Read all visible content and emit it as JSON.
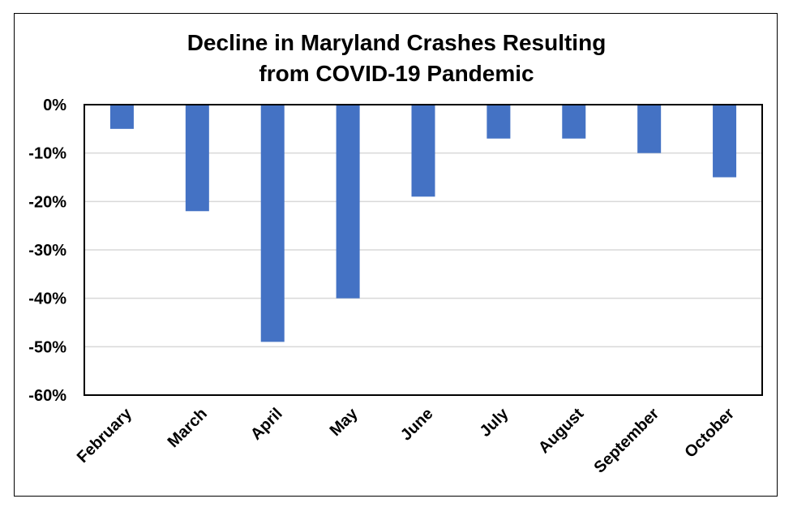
{
  "chart_data": {
    "type": "bar",
    "title_lines": [
      "Decline in Maryland Crashes Resulting",
      "from COVID-19 Pandemic"
    ],
    "categories": [
      "February",
      "March",
      "April",
      "May",
      "June",
      "July",
      "August",
      "September",
      "October"
    ],
    "values": [
      -5,
      -22,
      -49,
      -40,
      -19,
      -7,
      -7,
      -10,
      -15
    ],
    "ylim": [
      -60,
      0
    ],
    "yticks": [
      0,
      -10,
      -20,
      -30,
      -40,
      -50,
      -60
    ],
    "ytick_labels": [
      "0%",
      "-10%",
      "-20%",
      "-30%",
      "-40%",
      "-50%",
      "-60%"
    ],
    "grid": true,
    "bar_color": "#4472C4",
    "gridline_color": "#D9D9D9"
  }
}
